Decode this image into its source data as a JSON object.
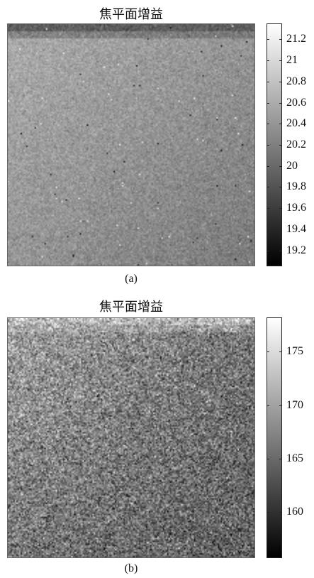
{
  "chart_data": [
    {
      "type": "heatmap",
      "title": "焦平面增益",
      "caption": "(a)",
      "xlabel": "",
      "ylabel": "",
      "colormap": "grayscale",
      "color_range": [
        19.05,
        21.35
      ],
      "colorbar_ticks": [
        21.2,
        21,
        20.8,
        20.6,
        20.4,
        20.2,
        20,
        19.8,
        19.6,
        19.4,
        19.2
      ],
      "colorbar_tick_labels": [
        "21.2",
        "21",
        "20.8",
        "20.6",
        "20.4",
        "20.2",
        "20",
        "19.8",
        "19.6",
        "19.4",
        "19.2"
      ],
      "grid": false,
      "field_summary": {
        "typical_value": 20.4,
        "top_band_value": 19.9,
        "upper_left_value": 20.6,
        "lower_right_value": 20.15
      }
    },
    {
      "type": "heatmap",
      "title": "焦平面增益",
      "caption": "(b)",
      "xlabel": "",
      "ylabel": "",
      "colormap": "grayscale",
      "color_range": [
        155.7,
        178.2
      ],
      "colorbar_ticks": [
        175,
        170,
        165,
        160
      ],
      "colorbar_tick_labels": [
        "175",
        "170",
        "165",
        "160"
      ],
      "grid": false,
      "field_summary": {
        "typical_value": 166,
        "top_band_value": 172,
        "upper_left_value": 170,
        "lower_right_value": 164
      }
    }
  ]
}
